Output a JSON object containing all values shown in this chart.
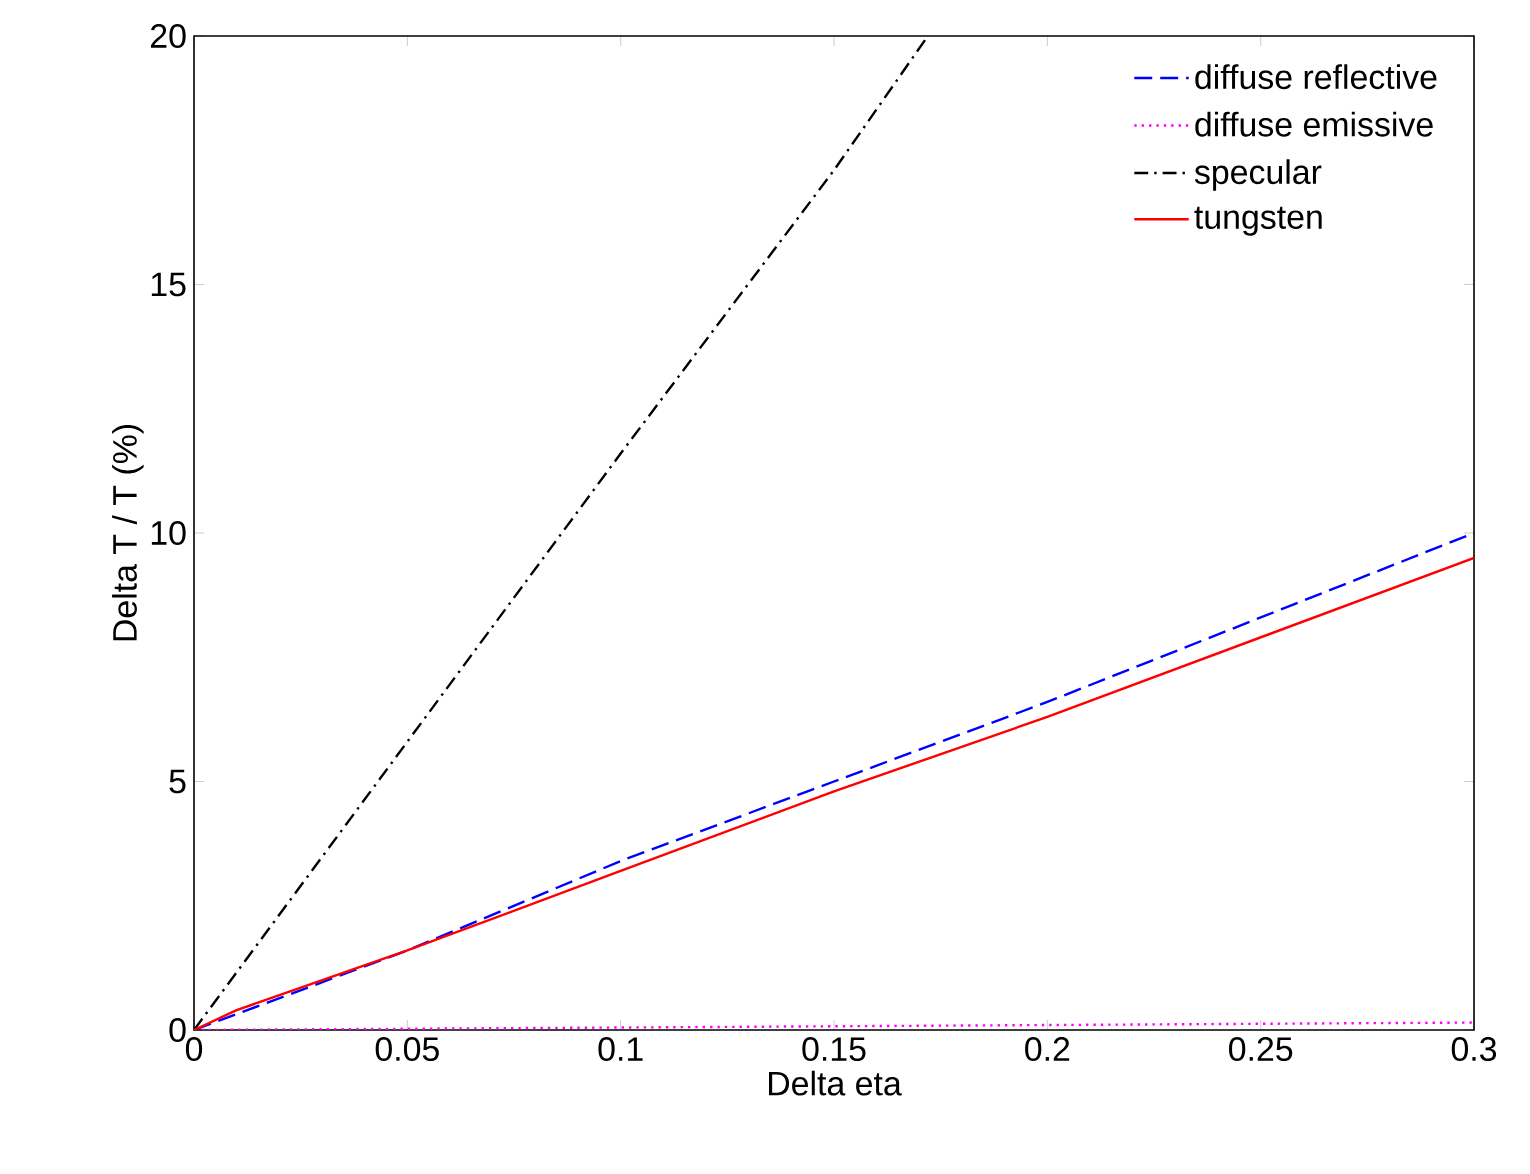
{
  "chart_data": {
    "type": "line",
    "xlabel": "Delta eta",
    "ylabel": "Delta T / T (%)",
    "xlim": [
      0,
      0.3
    ],
    "ylim": [
      0,
      20
    ],
    "xticks": [
      0,
      0.05,
      0.1,
      0.15,
      0.2,
      0.25,
      0.3
    ],
    "yticks": [
      0,
      5,
      10,
      15,
      20
    ],
    "grid": false,
    "legend": "top right",
    "series": [
      {
        "name": "diffuse reflective",
        "color": "#0000ff",
        "line_style": "dashed",
        "x": [
          0,
          0.05,
          0.1,
          0.15,
          0.2,
          0.25,
          0.3
        ],
        "values": [
          0,
          1.6,
          3.4,
          5.0,
          6.6,
          8.3,
          10.0
        ]
      },
      {
        "name": "diffuse emissive",
        "color": "#ff00ff",
        "line_style": "dotted",
        "x": [
          0,
          0.1,
          0.2,
          0.3
        ],
        "values": [
          0,
          0.05,
          0.1,
          0.15
        ]
      },
      {
        "name": "specular",
        "color": "#000000",
        "line_style": "dashdot",
        "x": [
          0,
          0.05,
          0.1,
          0.15,
          0.172
        ],
        "values": [
          0,
          5.8,
          11.6,
          17.3,
          20
        ]
      },
      {
        "name": "tungsten",
        "color": "#ff0000",
        "line_style": "solid",
        "x": [
          0,
          0.01,
          0.05,
          0.1,
          0.15,
          0.2,
          0.25,
          0.3
        ],
        "values": [
          0,
          0.4,
          1.6,
          3.2,
          4.8,
          6.3,
          7.9,
          9.5
        ]
      }
    ]
  }
}
